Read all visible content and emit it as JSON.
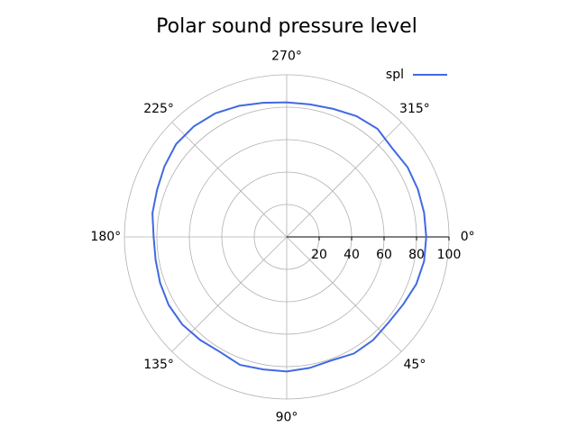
{
  "chart_data": {
    "type": "polar",
    "title": "Polar sound pressure level",
    "theta": [
      0,
      10,
      20,
      30,
      40,
      50,
      60,
      70,
      80,
      90,
      100,
      110,
      120,
      130,
      140,
      150,
      160,
      170,
      180,
      190,
      200,
      210,
      220,
      230,
      240,
      250,
      260,
      270,
      280,
      290,
      300,
      310,
      320,
      330,
      340,
      350
    ],
    "series": [
      {
        "name": "spl",
        "color": "#4169e1",
        "values": [
          86,
          86,
          85,
          83,
          82,
          83,
          83,
          81,
          82,
          83,
          83,
          84,
          82,
          83,
          84,
          84,
          83,
          82,
          82,
          84,
          85,
          87,
          89,
          89,
          88,
          86,
          84,
          83,
          83,
          84,
          86,
          87,
          85,
          86,
          86,
          86
        ]
      }
    ],
    "rlim": [
      0,
      100
    ],
    "rticks": [
      20,
      40,
      60,
      80,
      100
    ],
    "thetaticks": [
      {
        "value": 0,
        "label": "0°"
      },
      {
        "value": 45,
        "label": "45°"
      },
      {
        "value": 90,
        "label": "90°"
      },
      {
        "value": 135,
        "label": "135°"
      },
      {
        "value": 180,
        "label": "180°"
      },
      {
        "value": 225,
        "label": "225°"
      },
      {
        "value": 270,
        "label": "270°"
      },
      {
        "value": 315,
        "label": "315°"
      }
    ],
    "grid": true,
    "legend": "upper right"
  }
}
